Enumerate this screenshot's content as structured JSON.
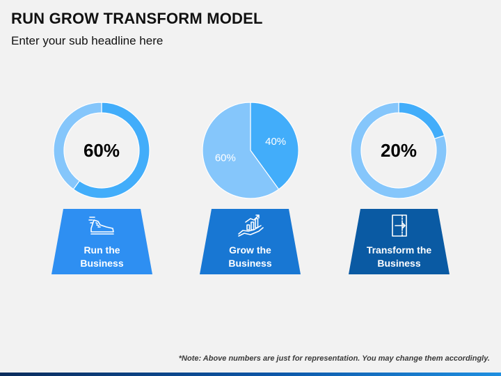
{
  "header": {
    "title": "RUN GROW TRANSFORM MODEL",
    "subtitle": "Enter your sub headline here"
  },
  "colors": {
    "light": "#85c6fb",
    "mid": "#42adfa",
    "card_run": "#2e8ff2",
    "card_grow": "#1877d3",
    "card_transform": "#0a5aa3"
  },
  "chart_data": [
    {
      "type": "pie",
      "style": "donut",
      "center_label": "60%",
      "slices": [
        {
          "value": 60,
          "color": "#42adfa"
        },
        {
          "value": 40,
          "color": "#85c6fb"
        }
      ]
    },
    {
      "type": "pie",
      "style": "pie",
      "slices": [
        {
          "value": 40,
          "label": "40%",
          "color": "#42adfa"
        },
        {
          "value": 60,
          "label": "60%",
          "color": "#85c6fb"
        }
      ]
    },
    {
      "type": "pie",
      "style": "donut",
      "center_label": "20%",
      "slices": [
        {
          "value": 20,
          "color": "#42adfa"
        },
        {
          "value": 80,
          "color": "#85c6fb"
        }
      ]
    }
  ],
  "cards": [
    {
      "line1": "Run the",
      "line2": "Business",
      "icon": "running-shoe-icon"
    },
    {
      "line1": "Grow the",
      "line2": "Business",
      "icon": "hand-growth-chart-icon"
    },
    {
      "line1": "Transform the",
      "line2": "Business",
      "icon": "door-exit-icon"
    }
  ],
  "footer": {
    "note": "*Note: Above numbers are just for representation. You may change them accordingly."
  }
}
